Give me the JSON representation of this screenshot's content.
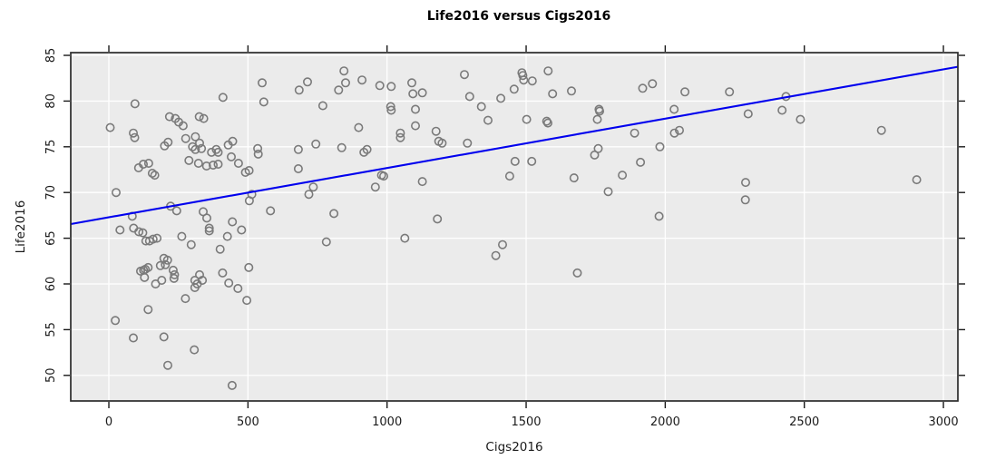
{
  "chart_data": {
    "type": "scatter",
    "title": "Life2016 versus Cigs2016",
    "xlabel": "Cigs2016",
    "ylabel": "Life2016",
    "xlim": [
      -137,
      3052
    ],
    "ylim": [
      47.2,
      85.3
    ],
    "x_ticks": [
      0,
      500,
      1000,
      1500,
      2000,
      2500,
      3000
    ],
    "y_ticks": [
      50,
      55,
      60,
      65,
      70,
      75,
      80,
      85
    ],
    "grid": true,
    "legend": "none",
    "colors": {
      "panel_bg": "#ebebeb",
      "grid": "#ffffff",
      "panel_border": "#2b2b2b",
      "point_stroke": "#7a7a7a",
      "trend_line": "#0000ee",
      "text": "#1a1a1a",
      "title_text": "#000000"
    },
    "trend_line": {
      "x1": -137,
      "y1": 66.55,
      "x2": 3052,
      "y2": 83.75
    },
    "points": [
      [
        5,
        77.1
      ],
      [
        26,
        70.0
      ],
      [
        23,
        56.0
      ],
      [
        40,
        65.9
      ],
      [
        84,
        67.4
      ],
      [
        88,
        76.5
      ],
      [
        89,
        66.1
      ],
      [
        93,
        76.0
      ],
      [
        94,
        79.7
      ],
      [
        88,
        54.1
      ],
      [
        107,
        72.7
      ],
      [
        108,
        65.7
      ],
      [
        114,
        61.4
      ],
      [
        122,
        65.6
      ],
      [
        124,
        73.1
      ],
      [
        125,
        61.5
      ],
      [
        128,
        60.7
      ],
      [
        131,
        61.6
      ],
      [
        133,
        64.7
      ],
      [
        141,
        61.8
      ],
      [
        141,
        57.2
      ],
      [
        143,
        73.2
      ],
      [
        146,
        64.7
      ],
      [
        156,
        72.1
      ],
      [
        159,
        64.9
      ],
      [
        165,
        71.9
      ],
      [
        168,
        60.0
      ],
      [
        173,
        65.0
      ],
      [
        185,
        62.0
      ],
      [
        190,
        60.4
      ],
      [
        198,
        62.8
      ],
      [
        198,
        54.2
      ],
      [
        200,
        75.1
      ],
      [
        203,
        62.1
      ],
      [
        211,
        62.6
      ],
      [
        212,
        51.1
      ],
      [
        213,
        75.5
      ],
      [
        218,
        78.3
      ],
      [
        222,
        68.5
      ],
      [
        231,
        61.5
      ],
      [
        234,
        60.6
      ],
      [
        236,
        61.0
      ],
      [
        239,
        78.1
      ],
      [
        244,
        68.0
      ],
      [
        251,
        77.7
      ],
      [
        262,
        65.2
      ],
      [
        267,
        77.3
      ],
      [
        275,
        58.4
      ],
      [
        276,
        75.9
      ],
      [
        288,
        73.5
      ],
      [
        296,
        64.3
      ],
      [
        301,
        75.0
      ],
      [
        307,
        52.8
      ],
      [
        309,
        60.4
      ],
      [
        309,
        59.6
      ],
      [
        311,
        76.1
      ],
      [
        311,
        74.7
      ],
      [
        318,
        60.0
      ],
      [
        322,
        73.2
      ],
      [
        325,
        78.3
      ],
      [
        326,
        75.4
      ],
      [
        326,
        61.0
      ],
      [
        333,
        74.8
      ],
      [
        336,
        60.4
      ],
      [
        339,
        67.9
      ],
      [
        341,
        78.1
      ],
      [
        351,
        72.9
      ],
      [
        352,
        67.2
      ],
      [
        361,
        66.1
      ],
      [
        361,
        65.8
      ],
      [
        369,
        74.4
      ],
      [
        375,
        73.0
      ],
      [
        386,
        74.7
      ],
      [
        393,
        74.4
      ],
      [
        393,
        73.1
      ],
      [
        400,
        63.8
      ],
      [
        409,
        61.2
      ],
      [
        410,
        80.4
      ],
      [
        426,
        65.2
      ],
      [
        429,
        75.2
      ],
      [
        431,
        60.1
      ],
      [
        440,
        73.9
      ],
      [
        443,
        48.9
      ],
      [
        444,
        66.8
      ],
      [
        445,
        75.6
      ],
      [
        464,
        59.5
      ],
      [
        466,
        73.2
      ],
      [
        477,
        65.9
      ],
      [
        491,
        72.2
      ],
      [
        496,
        58.2
      ],
      [
        503,
        61.8
      ],
      [
        504,
        72.4
      ],
      [
        505,
        69.1
      ],
      [
        514,
        69.8
      ],
      [
        535,
        74.8
      ],
      [
        537,
        74.2
      ],
      [
        551,
        82.0
      ],
      [
        557,
        79.9
      ],
      [
        581,
        68.0
      ],
      [
        681,
        74.7
      ],
      [
        681,
        72.6
      ],
      [
        684,
        81.2
      ],
      [
        714,
        82.1
      ],
      [
        719,
        69.8
      ],
      [
        735,
        70.6
      ],
      [
        744,
        75.3
      ],
      [
        769,
        79.5
      ],
      [
        782,
        64.6
      ],
      [
        809,
        67.7
      ],
      [
        826,
        81.2
      ],
      [
        837,
        74.9
      ],
      [
        845,
        83.3
      ],
      [
        851,
        82.0
      ],
      [
        898,
        77.1
      ],
      [
        910,
        82.3
      ],
      [
        917,
        74.4
      ],
      [
        928,
        74.7
      ],
      [
        958,
        70.6
      ],
      [
        974,
        81.7
      ],
      [
        980,
        71.9
      ],
      [
        988,
        71.8
      ],
      [
        1013,
        79.4
      ],
      [
        1015,
        79.0
      ],
      [
        1015,
        81.6
      ],
      [
        1048,
        76.5
      ],
      [
        1048,
        76.0
      ],
      [
        1064,
        65.0
      ],
      [
        1089,
        82.0
      ],
      [
        1093,
        80.8
      ],
      [
        1102,
        79.1
      ],
      [
        1102,
        77.3
      ],
      [
        1127,
        80.9
      ],
      [
        1127,
        71.2
      ],
      [
        1176,
        76.7
      ],
      [
        1181,
        67.1
      ],
      [
        1186,
        75.6
      ],
      [
        1198,
        75.4
      ],
      [
        1278,
        82.9
      ],
      [
        1289,
        75.4
      ],
      [
        1297,
        80.5
      ],
      [
        1339,
        79.4
      ],
      [
        1363,
        77.9
      ],
      [
        1391,
        63.1
      ],
      [
        1409,
        80.3
      ],
      [
        1415,
        64.3
      ],
      [
        1441,
        71.8
      ],
      [
        1457,
        81.3
      ],
      [
        1460,
        73.4
      ],
      [
        1485,
        83.1
      ],
      [
        1488,
        82.8
      ],
      [
        1491,
        82.3
      ],
      [
        1502,
        78.0
      ],
      [
        1520,
        73.4
      ],
      [
        1522,
        82.2
      ],
      [
        1574,
        77.8
      ],
      [
        1578,
        77.6
      ],
      [
        1579,
        83.3
      ],
      [
        1595,
        80.8
      ],
      [
        1663,
        81.1
      ],
      [
        1672,
        71.6
      ],
      [
        1684,
        61.2
      ],
      [
        1746,
        74.1
      ],
      [
        1756,
        78.0
      ],
      [
        1759,
        74.8
      ],
      [
        1762,
        79.1
      ],
      [
        1764,
        78.9
      ],
      [
        1795,
        70.1
      ],
      [
        1846,
        71.9
      ],
      [
        1890,
        76.5
      ],
      [
        1911,
        73.3
      ],
      [
        1919,
        81.4
      ],
      [
        1954,
        81.9
      ],
      [
        1978,
        67.4
      ],
      [
        1981,
        75.0
      ],
      [
        2032,
        79.1
      ],
      [
        2033,
        76.5
      ],
      [
        2051,
        76.8
      ],
      [
        2071,
        81.0
      ],
      [
        2231,
        81.0
      ],
      [
        2288,
        69.2
      ],
      [
        2289,
        71.1
      ],
      [
        2298,
        78.6
      ],
      [
        2420,
        79.0
      ],
      [
        2434,
        80.5
      ],
      [
        2486,
        78.0
      ],
      [
        2777,
        76.8
      ],
      [
        2904,
        71.4
      ]
    ]
  }
}
